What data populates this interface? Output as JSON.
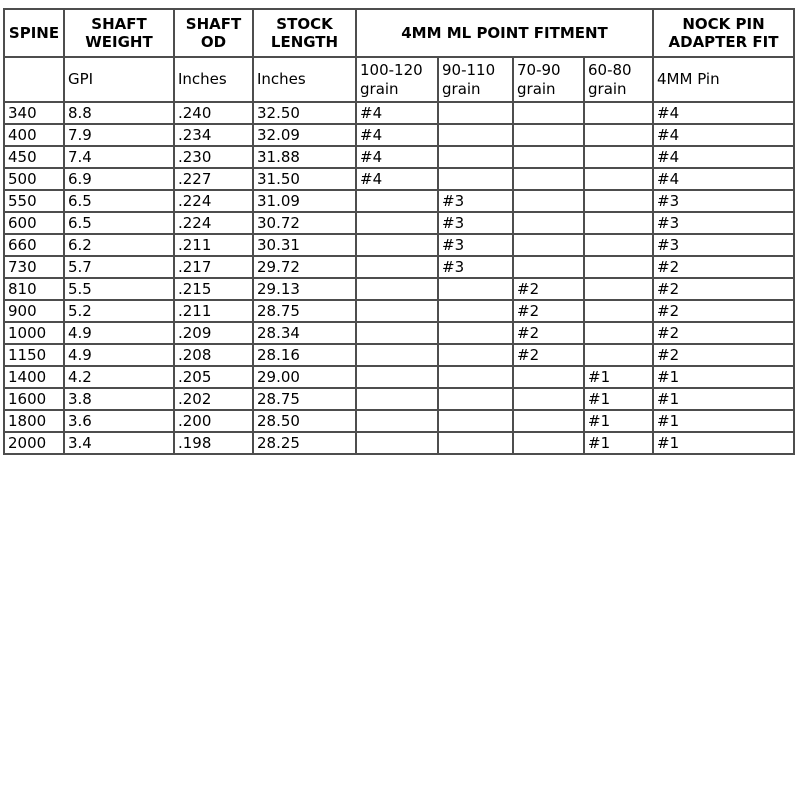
{
  "table": {
    "title": "arrow-shaft-specification-chart",
    "header_groups": [
      {
        "label": "SPINE",
        "colspan": 1
      },
      {
        "label": "SHAFT WEIGHT",
        "colspan": 1
      },
      {
        "label": "SHAFT OD",
        "colspan": 1
      },
      {
        "label": "STOCK LENGTH",
        "colspan": 1
      },
      {
        "label": "4MM ML POINT FITMENT",
        "colspan": 4
      },
      {
        "label": "NOCK PIN ADAPTER FIT",
        "colspan": 1
      }
    ],
    "subheaders": [
      "",
      "GPI",
      "Inches",
      "Inches",
      "100-120 grain",
      "90-110 grain",
      "70-90 grain",
      "60-80 grain",
      "4MM Pin"
    ],
    "rows": [
      [
        "340",
        "8.8",
        ".240",
        "32.50",
        "#4",
        "",
        "",
        "",
        "#4"
      ],
      [
        "400",
        "7.9",
        ".234",
        "32.09",
        "#4",
        "",
        "",
        "",
        "#4"
      ],
      [
        "450",
        "7.4",
        ".230",
        "31.88",
        "#4",
        "",
        "",
        "",
        "#4"
      ],
      [
        "500",
        "6.9",
        ".227",
        "31.50",
        "#4",
        "",
        "",
        "",
        "#4"
      ],
      [
        "550",
        "6.5",
        ".224",
        "31.09",
        "",
        "#3",
        "",
        "",
        "#3"
      ],
      [
        "600",
        "6.5",
        ".224",
        "30.72",
        "",
        "#3",
        "",
        "",
        "#3"
      ],
      [
        "660",
        "6.2",
        ".211",
        "30.31",
        "",
        "#3",
        "",
        "",
        "#3"
      ],
      [
        "730",
        "5.7",
        ".217",
        "29.72",
        "",
        "#3",
        "",
        "",
        "#2"
      ],
      [
        "810",
        "5.5",
        ".215",
        "29.13",
        "",
        "",
        "#2",
        "",
        "#2"
      ],
      [
        "900",
        "5.2",
        ".211",
        "28.75",
        "",
        "",
        "#2",
        "",
        "#2"
      ],
      [
        "1000",
        "4.9",
        ".209",
        "28.34",
        "",
        "",
        "#2",
        "",
        "#2"
      ],
      [
        "1150",
        "4.9",
        ".208",
        "28.16",
        "",
        "",
        "#2",
        "",
        "#2"
      ],
      [
        "1400",
        "4.2",
        ".205",
        "29.00",
        "",
        "",
        "",
        "#1",
        "#1"
      ],
      [
        "1600",
        "3.8",
        ".202",
        "28.75",
        "",
        "",
        "",
        "#1",
        "#1"
      ],
      [
        "1800",
        "3.6",
        ".200",
        "28.50",
        "",
        "",
        "",
        "#1",
        "#1"
      ],
      [
        "2000",
        "3.4",
        ".198",
        "28.25",
        "",
        "",
        "",
        "#1",
        "#1"
      ]
    ],
    "colors": {
      "border": "#4d4d4d",
      "text": "#000000",
      "background": "#ffffff"
    }
  }
}
